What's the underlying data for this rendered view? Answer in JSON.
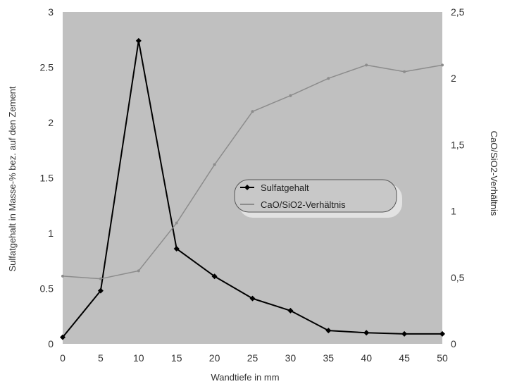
{
  "chart_data": {
    "type": "line",
    "x": [
      0,
      5,
      10,
      15,
      20,
      25,
      30,
      35,
      40,
      45,
      50
    ],
    "x_ticks": [
      "0",
      "5",
      "10",
      "15",
      "20",
      "25",
      "30",
      "35",
      "40",
      "45",
      "50"
    ],
    "xlabel": "Wandtiefe in mm",
    "ylabel_left": "Sulfatgehalt in Masse-% bez. auf den Zement",
    "ylabel_right": "CaO/SiO2-Verhältnis",
    "ylim_left": [
      0,
      3
    ],
    "ylim_right": [
      0,
      2.5
    ],
    "y_ticks_left": [
      "0",
      "0.5",
      "1",
      "1.5",
      "2",
      "2.5",
      "3"
    ],
    "y_ticks_right": [
      "0",
      "0,5",
      "1",
      "1,5",
      "2",
      "2,5"
    ],
    "grid": false,
    "legend_position": "center-right",
    "series": [
      {
        "name": "Sulfatgehalt",
        "axis": "left",
        "color": "#000000",
        "values": [
          0.06,
          0.48,
          2.74,
          0.86,
          0.61,
          0.41,
          0.3,
          0.12,
          0.1,
          0.09,
          0.09
        ]
      },
      {
        "name": "CaO/SiO2-Verhältnis",
        "axis": "right",
        "color": "#8c8c8c",
        "values": [
          0.51,
          0.49,
          0.55,
          0.91,
          1.35,
          1.75,
          1.87,
          2.0,
          2.1,
          2.05,
          2.1
        ]
      }
    ]
  },
  "colors": {
    "plot_background": "#c0c0c0",
    "primary_line": "#000000",
    "secondary_line": "#8c8c8c",
    "legend_box": "#c8c8c8"
  }
}
